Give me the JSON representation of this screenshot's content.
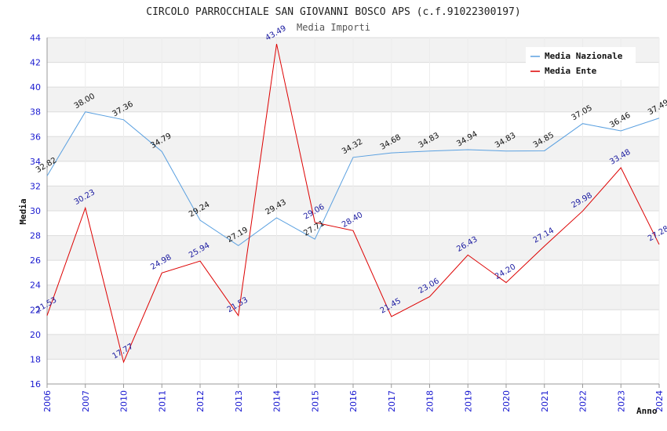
{
  "chart_data": {
    "type": "line",
    "title": "CIRCOLO PARROCCHIALE SAN GIOVANNI BOSCO APS (c.f.91022300197)",
    "subtitle": "Media Importi",
    "xlabel": "Anno",
    "ylabel": "Media",
    "ylim": [
      16,
      44
    ],
    "yticks": [
      "16",
      "18",
      "20",
      "22",
      "24",
      "26",
      "28",
      "30",
      "32",
      "34",
      "36",
      "38",
      "40",
      "42",
      "44"
    ],
    "categories": [
      "2006",
      "2007",
      "2010",
      "2011",
      "2012",
      "2013",
      "2014",
      "2015",
      "2016",
      "2017",
      "2018",
      "2019",
      "2020",
      "2021",
      "2022",
      "2023",
      "2024"
    ],
    "legend_position": "top-right",
    "series": [
      {
        "name": "Media Nazionale",
        "color": "#5aa0e0",
        "values": [
          32.82,
          38.0,
          37.36,
          34.79,
          29.24,
          27.19,
          29.43,
          27.71,
          34.32,
          34.68,
          34.83,
          34.94,
          34.83,
          34.85,
          37.05,
          36.46,
          37.49
        ],
        "labels": [
          "32.82",
          "38.00",
          "37.36",
          "34.79",
          "29.24",
          "27.19",
          "29.43",
          "27.71",
          "34.32",
          "34.68",
          "34.83",
          "34.94",
          "34.83",
          "34.85",
          "37.05",
          "36.46",
          "37.49"
        ]
      },
      {
        "name": "Media Ente",
        "color": "#dd0000",
        "values": [
          21.53,
          30.23,
          17.77,
          24.98,
          25.94,
          21.53,
          43.49,
          29.06,
          28.4,
          21.45,
          23.06,
          26.43,
          24.2,
          27.14,
          29.98,
          33.48,
          27.28
        ],
        "labels": [
          "21.53",
          "30.23",
          "17.77",
          "24.98",
          "25.94",
          "21.53",
          "43.49",
          "29.06",
          "28.40",
          "21.45",
          "23.06",
          "26.43",
          "24.20",
          "27.14",
          "29.98",
          "33.48",
          "27.28"
        ]
      }
    ]
  }
}
